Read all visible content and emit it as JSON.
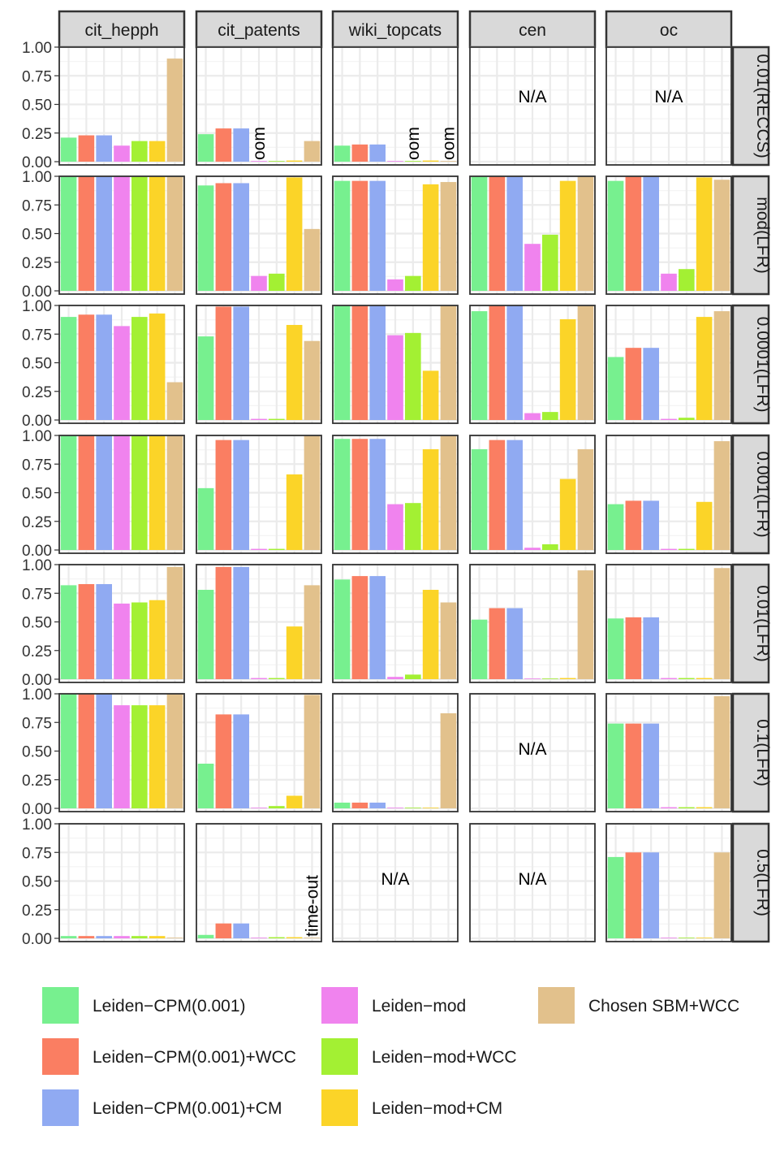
{
  "chart_data": {
    "type": "bar",
    "layout": "facet-grid",
    "columns": [
      "cit_hepph",
      "cit_patents",
      "wiki_topcats",
      "cen",
      "oc"
    ],
    "rows": [
      "0.01(RECCS)",
      "mod(LFR)",
      "0.0001(LFR)",
      "0.001(LFR)",
      "0.01(LFR)",
      "0.1(LFR)",
      "0.5(LFR)"
    ],
    "ylim": [
      0,
      1
    ],
    "yticks": [
      "0.00",
      "0.25",
      "0.50",
      "0.75",
      "1.00"
    ],
    "methods": [
      {
        "name": "Leiden−CPM(0.001)",
        "color": "#77F08F"
      },
      {
        "name": "Leiden−CPM(0.001)+WCC",
        "color": "#FA7E62"
      },
      {
        "name": "Leiden−CPM(0.001)+CM",
        "color": "#90AAF2"
      },
      {
        "name": "Leiden−mod",
        "color": "#F083EE"
      },
      {
        "name": "Leiden−mod+WCC",
        "color": "#A3F033"
      },
      {
        "name": "Leiden−mod+CM",
        "color": "#FBD428"
      },
      {
        "name": "Chosen SBM+WCC",
        "color": "#E2C18C"
      }
    ],
    "panels": [
      [
        {
          "values": [
            0.21,
            0.23,
            0.23,
            0.14,
            0.18,
            0.18,
            0.9
          ]
        },
        {
          "values": [
            0.24,
            0.29,
            0.29,
            0.0,
            0.0,
            0.01,
            0.18
          ],
          "annotations": [
            {
              "text": "oom",
              "slot": 3
            }
          ]
        },
        {
          "values": [
            0.14,
            0.15,
            0.15,
            0.0,
            0.0,
            0.01,
            0.0
          ],
          "annotations": [
            {
              "text": "oom",
              "slot": 4
            },
            {
              "text": "oom",
              "slot": 6
            }
          ]
        },
        {
          "values": [
            null,
            null,
            null,
            null,
            null,
            null,
            null
          ],
          "na": "N/A",
          "na_pos": "upper"
        },
        {
          "values": [
            null,
            null,
            null,
            null,
            null,
            null,
            null
          ],
          "na": "N/A",
          "na_pos": "upper"
        }
      ],
      [
        {
          "values": [
            1.0,
            1.0,
            1.0,
            1.0,
            1.0,
            1.0,
            1.0
          ]
        },
        {
          "values": [
            0.92,
            0.94,
            0.94,
            0.13,
            0.15,
            0.99,
            0.54
          ]
        },
        {
          "values": [
            0.96,
            0.96,
            0.96,
            0.1,
            0.13,
            0.93,
            0.95
          ]
        },
        {
          "values": [
            1.0,
            1.0,
            1.0,
            0.41,
            0.49,
            0.96,
            1.0
          ]
        },
        {
          "values": [
            0.96,
            1.0,
            1.0,
            0.15,
            0.19,
            0.99,
            0.97
          ]
        }
      ],
      [
        {
          "values": [
            0.9,
            0.92,
            0.92,
            0.82,
            0.9,
            0.93,
            0.33
          ]
        },
        {
          "values": [
            0.73,
            0.99,
            0.99,
            0.01,
            0.01,
            0.83,
            0.69
          ]
        },
        {
          "values": [
            1.0,
            1.0,
            1.0,
            0.74,
            0.76,
            0.43,
            1.0
          ]
        },
        {
          "values": [
            0.95,
            1.0,
            1.0,
            0.06,
            0.07,
            0.88,
            1.0
          ]
        },
        {
          "values": [
            0.55,
            0.63,
            0.63,
            0.01,
            0.02,
            0.9,
            0.95
          ]
        }
      ],
      [
        {
          "values": [
            1.0,
            1.0,
            1.0,
            1.0,
            1.0,
            1.0,
            1.0
          ]
        },
        {
          "values": [
            0.54,
            0.96,
            0.96,
            0.01,
            0.01,
            0.66,
            1.0
          ]
        },
        {
          "values": [
            0.97,
            0.97,
            0.97,
            0.4,
            0.41,
            0.88,
            1.0
          ]
        },
        {
          "values": [
            0.88,
            0.96,
            0.96,
            0.02,
            0.05,
            0.62,
            0.88
          ]
        },
        {
          "values": [
            0.4,
            0.43,
            0.43,
            0.01,
            0.01,
            0.42,
            0.95
          ]
        }
      ],
      [
        {
          "values": [
            0.82,
            0.83,
            0.83,
            0.66,
            0.67,
            0.69,
            0.98
          ]
        },
        {
          "values": [
            0.78,
            0.98,
            0.98,
            0.01,
            0.01,
            0.46,
            0.82
          ]
        },
        {
          "values": [
            0.87,
            0.9,
            0.9,
            0.02,
            0.04,
            0.78,
            0.67
          ]
        },
        {
          "values": [
            0.52,
            0.62,
            0.62,
            0.0,
            0.0,
            0.01,
            0.95
          ]
        },
        {
          "values": [
            0.53,
            0.54,
            0.54,
            0.01,
            0.01,
            0.01,
            0.97
          ]
        }
      ],
      [
        {
          "values": [
            1.0,
            1.0,
            1.0,
            0.9,
            0.9,
            0.9,
            1.0
          ]
        },
        {
          "values": [
            0.39,
            0.82,
            0.82,
            0.0,
            0.02,
            0.11,
            0.99
          ]
        },
        {
          "values": [
            0.05,
            0.05,
            0.05,
            0.0,
            0.0,
            0.0,
            0.83
          ]
        },
        {
          "values": [
            null,
            null,
            null,
            null,
            null,
            null,
            null
          ],
          "na": "N/A",
          "na_pos": "middle"
        },
        {
          "values": [
            0.74,
            0.74,
            0.74,
            0.01,
            0.01,
            0.01,
            0.98
          ]
        }
      ],
      [
        {
          "values": [
            0.02,
            0.02,
            0.02,
            0.02,
            0.02,
            0.02,
            0.0
          ]
        },
        {
          "values": [
            0.03,
            0.13,
            0.13,
            0.0,
            0.01,
            0.01,
            0.0
          ],
          "annotations": [
            {
              "text": "time-out",
              "slot": 6
            }
          ]
        },
        {
          "values": [
            null,
            null,
            null,
            null,
            null,
            null,
            null
          ],
          "na": "N/A",
          "na_pos": "middle"
        },
        {
          "values": [
            null,
            null,
            null,
            null,
            null,
            null,
            null
          ],
          "na": "N/A",
          "na_pos": "middle"
        },
        {
          "values": [
            0.71,
            0.75,
            0.75,
            0.0,
            0.0,
            0.0,
            0.75
          ]
        }
      ]
    ]
  }
}
